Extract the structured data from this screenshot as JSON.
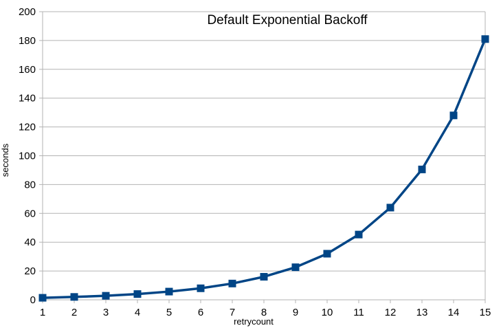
{
  "chart_data": {
    "type": "line",
    "title": "Default Exponential Backoff",
    "xlabel": "retrycount",
    "ylabel": "seconds",
    "x": [
      1,
      2,
      3,
      4,
      5,
      6,
      7,
      8,
      9,
      10,
      11,
      12,
      13,
      14,
      15
    ],
    "series": [
      {
        "values": [
          1.4,
          2.0,
          2.8,
          4.0,
          5.7,
          8.0,
          11.3,
          16.0,
          22.6,
          32.0,
          45.3,
          64.0,
          90.5,
          128.0,
          181.0
        ]
      }
    ],
    "xticks": [
      "1",
      "2",
      "3",
      "4",
      "5",
      "6",
      "7",
      "8",
      "9",
      "10",
      "11",
      "12",
      "13",
      "14",
      "15"
    ],
    "yticks": [
      "0",
      "20",
      "40",
      "60",
      "80",
      "100",
      "120",
      "140",
      "160",
      "180",
      "200"
    ],
    "ylim": [
      0,
      200
    ],
    "xlim": [
      1,
      15
    ],
    "grid": true,
    "legend": "none",
    "colors": {
      "line": "#004586",
      "marker": "#004586",
      "grid": "#b3b3b3",
      "axis": "#b3b3b3"
    }
  }
}
